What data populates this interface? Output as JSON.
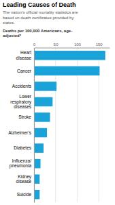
{
  "chart_data": {
    "type": "bar",
    "orientation": "horizontal",
    "title": "Leading Causes of Death",
    "subtitle": "The nation’s official mortality statistics are\nbased on death certificates provided by\nstates.",
    "xlabel": "Deaths per 100,000 Americans, age-\nadjusted*",
    "categories": [
      "Heart\ndisease",
      "Cancer",
      "Accidents",
      "Lower\nrespiratory\ndiseases",
      "Stroke",
      "Alzheimer’s",
      "Diabetes",
      "Influenza/\npneumonia",
      "Kidney\ndisease",
      "Suicide"
    ],
    "values": [
      165,
      152,
      52,
      43,
      37,
      30,
      22,
      15,
      13,
      13
    ],
    "color": "#1aa3d8",
    "xlim": [
      0,
      175
    ],
    "xticks": [
      0,
      50,
      100,
      150
    ],
    "grid": true
  }
}
